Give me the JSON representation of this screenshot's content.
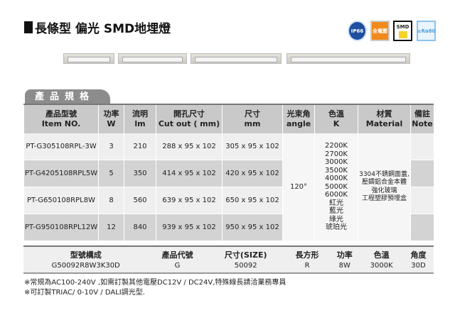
{
  "title": "長條型 偏光 SMD地埋燈",
  "badges": [
    {
      "name": "ip66-icon",
      "text": "IP66",
      "color": "#1f4fa0"
    },
    {
      "name": "full-voltage-icon",
      "text": "全電壓",
      "color": "#f08a1c"
    },
    {
      "name": "smd-icon",
      "text": "SMD",
      "color": "#111"
    },
    {
      "name": "ra80-icon",
      "text": "≥Ra80",
      "color": "#4a9fe0"
    }
  ],
  "section_tab": "產品規格",
  "spec": {
    "headers": [
      [
        "產品型號",
        "Item NO."
      ],
      [
        "功率",
        "W"
      ],
      [
        "流明",
        "lm"
      ],
      [
        "開孔尺寸",
        "Cut out ( mm)"
      ],
      [
        "尺寸",
        "mm"
      ],
      [
        "光束角",
        "angle"
      ],
      [
        "色溫",
        "K"
      ],
      [
        "材質",
        "Material"
      ],
      [
        "備註",
        "Note"
      ]
    ],
    "rows": [
      [
        "PT-G305108RPL-3W",
        "3",
        "210",
        "288 x 95 x 102",
        "305 x 95 x 102"
      ],
      [
        "PT-G4205108RPL5W",
        "5",
        "350",
        "414 x 95 x 102",
        "420 x 95 x 102"
      ],
      [
        "PT-G650108RPL8W",
        "8",
        "560",
        "639 x 95 x 102",
        "650 x 95 x 102"
      ],
      [
        "PT-G950108RPL12W",
        "12",
        "840",
        "939  x 95 x 102",
        "950 x 95  x 102"
      ]
    ],
    "angle": "120°",
    "color_temps": [
      "2200K",
      "2700K",
      "3000K",
      "3500K",
      "4000K",
      "5000K",
      "6000K",
      "紅光",
      "藍光",
      "綠光",
      "琥珀光"
    ],
    "material": [
      "3304不銹鋼面蓋,",
      "壓鑄鋁合金本體",
      "強化玻璃",
      "工程塑膠預埋盒"
    ]
  },
  "code": {
    "headers": [
      "型號構成",
      "產品代號",
      "尺寸(SIZE)",
      "長方形",
      "功率",
      "色溫",
      "角度"
    ],
    "values": [
      "G50092R8W3K30D",
      "G",
      "50092",
      "R",
      "8W",
      "3000K",
      "30D"
    ]
  },
  "notes": [
    "※常規為AC100-240V ,如需訂製其他電壓DC12V / DC24V,特殊線長請洽業務專員",
    "※可訂製TRIAC/ 0-10V / DALI調光型."
  ]
}
